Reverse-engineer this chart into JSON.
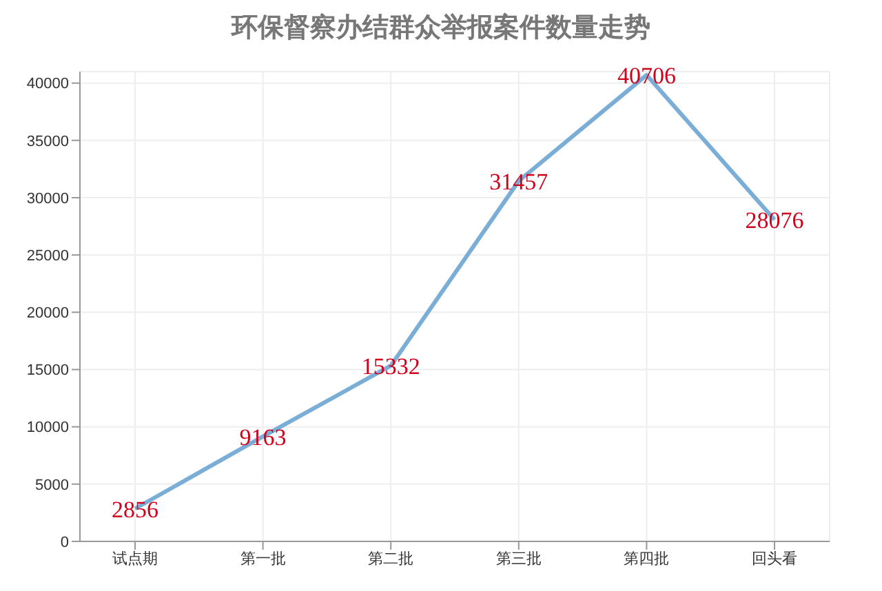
{
  "chart_data": {
    "type": "line",
    "title": "环保督察办结群众举报案件数量走势",
    "categories": [
      "试点期",
      "第一批",
      "第二批",
      "第三批",
      "第四批",
      "回头看"
    ],
    "series": [
      {
        "color": "#7aaed6",
        "values": [
          2856,
          9163,
          15332,
          31457,
          40706,
          28076
        ]
      }
    ],
    "ylim": [
      0,
      41000
    ],
    "yticks": [
      0,
      5000,
      10000,
      15000,
      20000,
      25000,
      30000,
      35000,
      40000
    ],
    "grid": true,
    "data_labels": true,
    "marker": "none",
    "line_style": "solid",
    "legend": false
  }
}
